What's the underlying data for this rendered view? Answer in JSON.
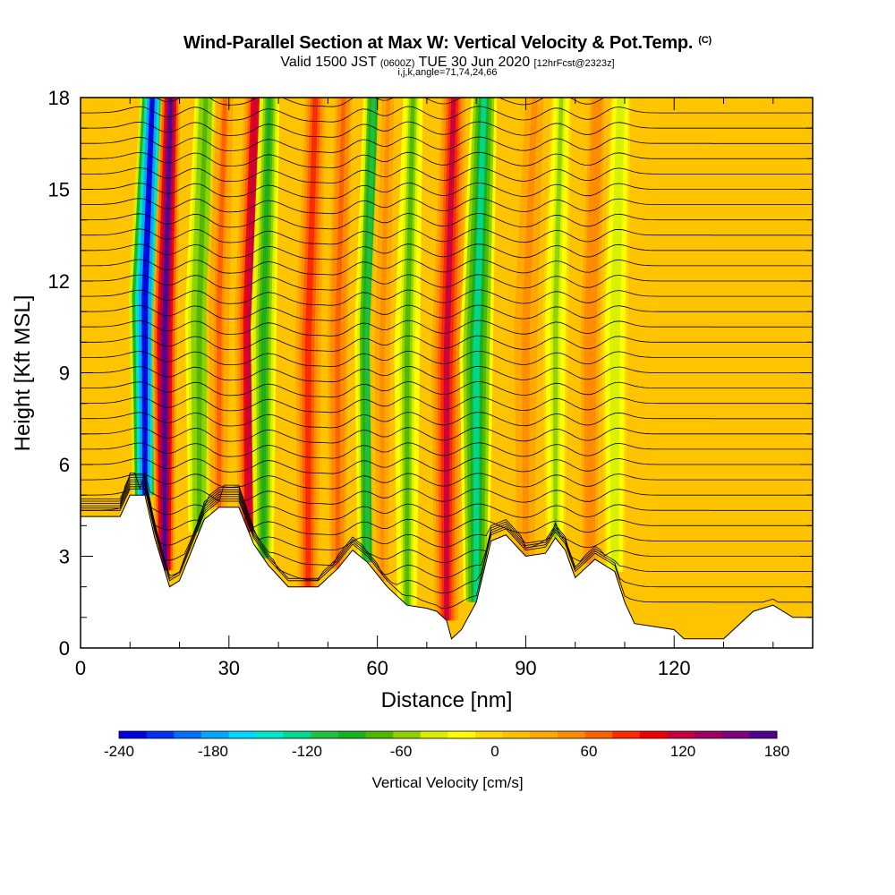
{
  "header": {
    "title": "Wind-Parallel Section at Max W: Vertical Velocity & Pot.Temp.",
    "title_mark": "(C)",
    "valid_prefix": "Valid 1500 JST",
    "valid_utc": "(0600Z)",
    "valid_date": "TUE 30 Jun 2020",
    "forecast": "[12hrFcst@2323z]",
    "indices": "i,j,k,angle=71,74,24,66"
  },
  "chart_data": {
    "type": "heatmap",
    "xlabel": "Distance [nm]",
    "ylabel": "Height [Kft MSL]",
    "xlim": [
      0,
      148
    ],
    "ylim": [
      0,
      18
    ],
    "x_ticks": [
      0,
      30,
      60,
      90,
      120
    ],
    "y_ticks": [
      0,
      3,
      6,
      9,
      12,
      15,
      18
    ],
    "colorbar": {
      "label": "Vertical Velocity [cm/s]",
      "ticks": [
        -240,
        -180,
        -120,
        -60,
        0,
        60,
        120,
        180
      ],
      "range": [
        -240,
        180
      ],
      "colors": [
        "#0000e0",
        "#0030f0",
        "#0070ff",
        "#00a8ff",
        "#00d8ff",
        "#00e8c8",
        "#00d890",
        "#20c040",
        "#18b020",
        "#50b800",
        "#90d000",
        "#d8f000",
        "#ffff00",
        "#ffd800",
        "#ffc000",
        "#ffa800",
        "#ff8c00",
        "#ff6000",
        "#ff2800",
        "#f00000",
        "#c80040",
        "#a00060",
        "#800080",
        "#500090"
      ]
    },
    "columns": [
      {
        "x": 13,
        "w": -230,
        "width": 2.5
      },
      {
        "x": 17,
        "w": 175,
        "width": 2.0
      },
      {
        "x": 24,
        "w": -80,
        "width": 2.2
      },
      {
        "x": 28,
        "w": 60,
        "width": 2.0
      },
      {
        "x": 34,
        "w": 120,
        "width": 2.2
      },
      {
        "x": 37,
        "w": -100,
        "width": 2.0
      },
      {
        "x": 46,
        "w": 80,
        "width": 2.5
      },
      {
        "x": 52,
        "w": 70,
        "width": 2.0
      },
      {
        "x": 58,
        "w": -110,
        "width": 2.0
      },
      {
        "x": 61,
        "w": 40,
        "width": 2.0
      },
      {
        "x": 66,
        "w": -70,
        "width": 2.0
      },
      {
        "x": 74,
        "w": 115,
        "width": 2.4
      },
      {
        "x": 80,
        "w": -120,
        "width": 2.6
      },
      {
        "x": 90,
        "w": 40,
        "width": 3.0
      },
      {
        "x": 96,
        "w": -50,
        "width": 2.0
      },
      {
        "x": 103,
        "w": 50,
        "width": 2.5
      },
      {
        "x": 108,
        "w": -40,
        "width": 2.0
      }
    ],
    "terrain": [
      [
        0,
        4.3
      ],
      [
        8,
        4.3
      ],
      [
        10,
        5.0
      ],
      [
        13,
        5.0
      ],
      [
        15,
        3.6
      ],
      [
        18,
        2.0
      ],
      [
        20,
        2.2
      ],
      [
        22,
        3.0
      ],
      [
        25,
        4.2
      ],
      [
        28,
        4.6
      ],
      [
        32,
        4.6
      ],
      [
        35,
        3.4
      ],
      [
        38,
        2.7
      ],
      [
        42,
        2.0
      ],
      [
        48,
        2.0
      ],
      [
        52,
        2.6
      ],
      [
        55,
        3.2
      ],
      [
        58,
        2.8
      ],
      [
        62,
        2.0
      ],
      [
        66,
        1.4
      ],
      [
        70,
        1.3
      ],
      [
        72,
        1.2
      ],
      [
        74,
        0.9
      ],
      [
        75,
        0.3
      ],
      [
        77,
        0.6
      ],
      [
        80,
        1.5
      ],
      [
        83,
        3.5
      ],
      [
        86,
        3.7
      ],
      [
        90,
        3.0
      ],
      [
        94,
        3.1
      ],
      [
        96,
        3.6
      ],
      [
        98,
        3.2
      ],
      [
        100,
        2.3
      ],
      [
        104,
        2.9
      ],
      [
        108,
        2.5
      ],
      [
        110,
        1.5
      ],
      [
        112,
        0.8
      ],
      [
        116,
        0.7
      ],
      [
        120,
        0.6
      ],
      [
        122,
        0.3
      ],
      [
        126,
        0.3
      ],
      [
        130,
        0.3
      ],
      [
        136,
        1.2
      ],
      [
        140,
        1.4
      ],
      [
        144,
        1.0
      ],
      [
        148,
        1.0
      ]
    ],
    "theta_label_color": "#000000"
  }
}
